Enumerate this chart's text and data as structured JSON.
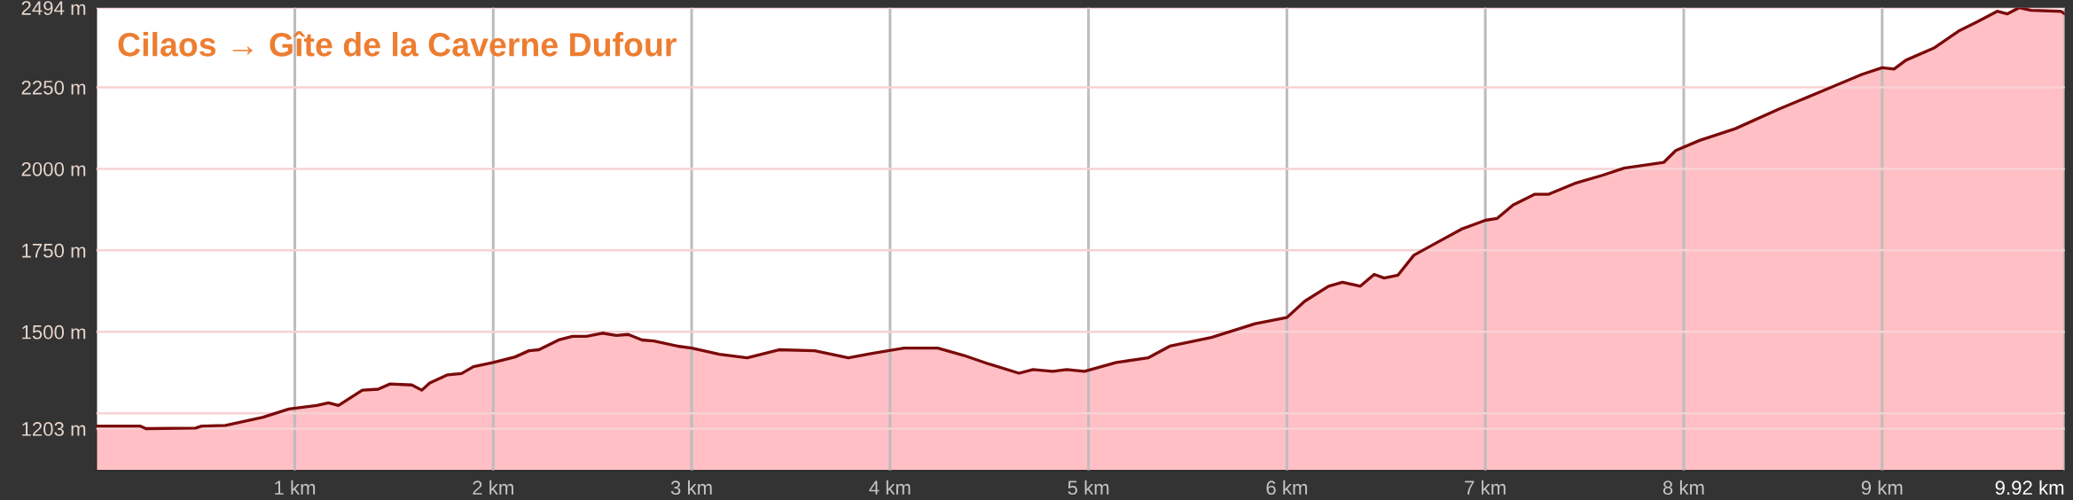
{
  "chart_data": {
    "type": "area",
    "title": "Cilaos → Gîte de la Caverne Dufour",
    "x": [
      0,
      0.22,
      0.25,
      0.5,
      0.53,
      0.65,
      0.84,
      0.97,
      1.11,
      1.17,
      1.22,
      1.34,
      1.42,
      1.48,
      1.59,
      1.64,
      1.68,
      1.77,
      1.84,
      1.9,
      2.0,
      2.11,
      2.18,
      2.23,
      2.33,
      2.4,
      2.47,
      2.55,
      2.62,
      2.68,
      2.75,
      2.81,
      2.93,
      3.0,
      3.14,
      3.28,
      3.44,
      3.62,
      3.79,
      3.91,
      4.07,
      4.24,
      4.37,
      4.5,
      4.65,
      4.72,
      4.82,
      4.89,
      4.98,
      5.14,
      5.3,
      5.41,
      5.62,
      5.84,
      6.0,
      6.09,
      6.21,
      6.28,
      6.37,
      6.44,
      6.49,
      6.56,
      6.64,
      6.76,
      6.88,
      7.0,
      7.06,
      7.14,
      7.25,
      7.32,
      7.45,
      7.59,
      7.7,
      7.9,
      7.96,
      8.08,
      8.26,
      8.48,
      8.7,
      8.9,
      9.0,
      9.06,
      9.12,
      9.26,
      9.39,
      9.48,
      9.58,
      9.63,
      9.69,
      9.75,
      9.9,
      9.92
    ],
    "series": [
      {
        "color": "#ffbfc4",
        "values": [
          1211,
          1211,
          1203,
          1205,
          1211,
          1213,
          1238,
          1263,
          1274,
          1282,
          1274,
          1321,
          1324,
          1340,
          1337,
          1321,
          1343,
          1368,
          1372,
          1393,
          1406,
          1423,
          1442,
          1445,
          1475,
          1486,
          1486,
          1496,
          1489,
          1492,
          1475,
          1472,
          1456,
          1450,
          1431,
          1420,
          1445,
          1442,
          1420,
          1434,
          1450,
          1450,
          1428,
          1401,
          1373,
          1384,
          1379,
          1384,
          1379,
          1406,
          1420,
          1456,
          1483,
          1525,
          1544,
          1594,
          1640,
          1652,
          1640,
          1676,
          1665,
          1674,
          1735,
          1775,
          1815,
          1842,
          1848,
          1889,
          1922,
          1922,
          1955,
          1980,
          2002,
          2020,
          2056,
          2087,
          2123,
          2183,
          2239,
          2290,
          2310,
          2306,
          2333,
          2370,
          2424,
          2451,
          2483,
          2475,
          2494,
          2486,
          2483,
          2475
        ]
      }
    ],
    "xlim": [
      0,
      9.92
    ],
    "xticks": [
      {
        "value": 1,
        "label": "1 km"
      },
      {
        "value": 2,
        "label": "2 km"
      },
      {
        "value": 3,
        "label": "3 km"
      },
      {
        "value": 4,
        "label": "4 km"
      },
      {
        "value": 5,
        "label": "5 km"
      },
      {
        "value": 6,
        "label": "6 km"
      },
      {
        "value": 7,
        "label": "7 km"
      },
      {
        "value": 8,
        "label": "8 km"
      },
      {
        "value": 9,
        "label": "9 km"
      },
      {
        "value": 9.92,
        "label": "9.92 km"
      }
    ],
    "ylim": [
      1075,
      2494
    ],
    "yticks": [
      {
        "value": 1203,
        "label": "1203 m"
      },
      {
        "value": 1250,
        "label": null
      },
      {
        "value": 1500,
        "label": "1500 m"
      },
      {
        "value": 1750,
        "label": "1750 m"
      },
      {
        "value": 2000,
        "label": "2000 m"
      },
      {
        "value": 2250,
        "label": "2250 m"
      },
      {
        "value": 2494,
        "label": "2494 m"
      }
    ],
    "grid": true
  }
}
